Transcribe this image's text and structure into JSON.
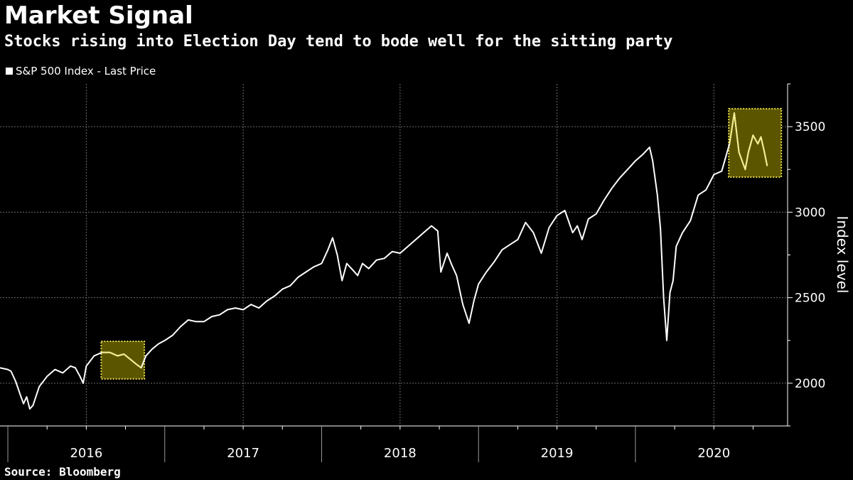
{
  "header": {
    "title": "Market Signal",
    "subtitle": "Stocks rising into Election Day tend to bode well for the sitting party"
  },
  "footer": {
    "source": "Source: Bloomberg"
  },
  "colors": {
    "background": "#000000",
    "line": "#ffffff",
    "highlight_fill": "#5c5500",
    "highlight_border": "#e8e04a",
    "highlight_line": "#f3ec8c",
    "grid": "#6e6e6e"
  },
  "chart_data": {
    "type": "line",
    "title": "Market Signal",
    "subtitle": "Stocks rising into Election Day tend to bode well for the sitting party",
    "ylabel": "Index level",
    "ylim": [
      1750,
      3750
    ],
    "yticks": [
      2000,
      2500,
      3000,
      3500
    ],
    "xlim": [
      2015.95,
      2020.97
    ],
    "x_tick_labels": [
      "2016",
      "2017",
      "2018",
      "2019",
      "2020"
    ],
    "grid": true,
    "legend": {
      "position": "top-left",
      "entries": [
        "S&P 500 Index - Last Price"
      ]
    },
    "series": [
      {
        "name": "S&P 500 Index - Last Price",
        "x": [
          2015.95,
          2016.0,
          2016.02,
          2016.05,
          2016.08,
          2016.1,
          2016.12,
          2016.14,
          2016.16,
          2016.2,
          2016.25,
          2016.3,
          2016.35,
          2016.4,
          2016.43,
          2016.46,
          2016.48,
          2016.5,
          2016.55,
          2016.6,
          2016.65,
          2016.7,
          2016.74,
          2016.78,
          2016.82,
          2016.85,
          2016.88,
          2016.92,
          2016.96,
          2017.0,
          2017.05,
          2017.1,
          2017.15,
          2017.2,
          2017.25,
          2017.3,
          2017.35,
          2017.4,
          2017.45,
          2017.5,
          2017.55,
          2017.6,
          2017.65,
          2017.7,
          2017.75,
          2017.8,
          2017.85,
          2017.9,
          2017.95,
          2018.0,
          2018.04,
          2018.07,
          2018.1,
          2018.13,
          2018.16,
          2018.2,
          2018.23,
          2018.26,
          2018.3,
          2018.35,
          2018.4,
          2018.45,
          2018.5,
          2018.55,
          2018.6,
          2018.65,
          2018.7,
          2018.74,
          2018.76,
          2018.8,
          2018.83,
          2018.86,
          2018.9,
          2018.94,
          2018.97,
          2019.0,
          2019.05,
          2019.1,
          2019.15,
          2019.2,
          2019.25,
          2019.3,
          2019.35,
          2019.4,
          2019.45,
          2019.5,
          2019.55,
          2019.6,
          2019.63,
          2019.66,
          2019.7,
          2019.75,
          2019.8,
          2019.85,
          2019.9,
          2019.95,
          2020.0,
          2020.05,
          2020.09,
          2020.11,
          2020.14,
          2020.16,
          2020.18,
          2020.2,
          2020.22,
          2020.24,
          2020.26,
          2020.3,
          2020.35,
          2020.4,
          2020.45,
          2020.5,
          2020.55,
          2020.6,
          2020.63,
          2020.66,
          2020.7,
          2020.72,
          2020.75,
          2020.78,
          2020.8,
          2020.82,
          2020.84
        ],
        "y": [
          2090,
          2080,
          2070,
          2010,
          1930,
          1880,
          1920,
          1850,
          1870,
          1980,
          2040,
          2080,
          2060,
          2100,
          2090,
          2040,
          2000,
          2100,
          2160,
          2180,
          2180,
          2160,
          2170,
          2140,
          2110,
          2090,
          2160,
          2200,
          2230,
          2250,
          2280,
          2330,
          2370,
          2360,
          2360,
          2390,
          2400,
          2430,
          2440,
          2430,
          2460,
          2440,
          2480,
          2510,
          2550,
          2570,
          2620,
          2650,
          2680,
          2700,
          2780,
          2850,
          2750,
          2600,
          2700,
          2660,
          2630,
          2700,
          2670,
          2720,
          2730,
          2770,
          2760,
          2800,
          2840,
          2880,
          2920,
          2890,
          2650,
          2760,
          2690,
          2630,
          2460,
          2350,
          2480,
          2580,
          2650,
          2710,
          2780,
          2810,
          2840,
          2940,
          2880,
          2760,
          2910,
          2980,
          3010,
          2880,
          2920,
          2840,
          2960,
          2990,
          3070,
          3140,
          3200,
          3250,
          3300,
          3340,
          3380,
          3300,
          3100,
          2900,
          2500,
          2250,
          2530,
          2600,
          2800,
          2880,
          2950,
          3100,
          3130,
          3220,
          3240,
          3400,
          3580,
          3350,
          3250,
          3350,
          3450,
          3400,
          3440,
          3360,
          3270
        ]
      }
    ],
    "highlights": [
      {
        "x_start": 2016.595,
        "x_end": 2016.87,
        "y_low": 2025,
        "y_high": 2245
      },
      {
        "x_start": 2020.595,
        "x_end": 2020.93,
        "y_low": 3205,
        "y_high": 3605
      }
    ]
  }
}
